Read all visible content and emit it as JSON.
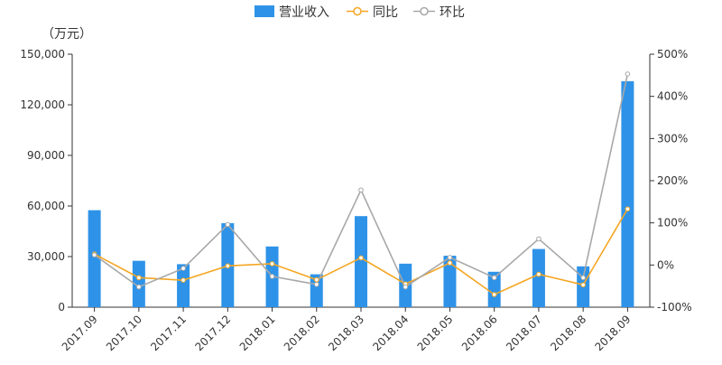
{
  "chart_data": {
    "type": "bar",
    "unit_label": "（万元）",
    "categories": [
      "2017.09",
      "2017.10",
      "2017.11",
      "2017.12",
      "2018.01",
      "2018.02",
      "2018.03",
      "2018.04",
      "2018.05",
      "2018.06",
      "2018.07",
      "2018.08",
      "2018.09"
    ],
    "series": [
      {
        "name": "营业收入",
        "type": "bar",
        "axis": "left",
        "color": "#2E93E8",
        "values": [
          57500,
          27500,
          25500,
          49800,
          36000,
          19500,
          54000,
          25800,
          30500,
          21000,
          34500,
          24200,
          134000
        ]
      },
      {
        "name": "同比",
        "type": "line",
        "axis": "right",
        "color": "#F5A623",
        "values": [
          26,
          -30,
          -36,
          -2,
          3,
          -35,
          17,
          -45,
          5,
          -70,
          -22,
          -47,
          133
        ]
      },
      {
        "name": "环比",
        "type": "line",
        "axis": "right",
        "color": "#A8A8A8",
        "values": [
          24,
          -52,
          -8,
          96,
          -27,
          -46,
          178,
          -52,
          18,
          -30,
          62,
          -30,
          453
        ]
      }
    ],
    "y_left": {
      "min": 0,
      "max": 150000,
      "ticks": [
        0,
        30000,
        60000,
        90000,
        120000,
        150000
      ],
      "tick_labels": [
        "0",
        "30,000",
        "60,000",
        "90,000",
        "120,000",
        "150,000"
      ]
    },
    "y_right": {
      "min": -100,
      "max": 500,
      "ticks": [
        -100,
        0,
        100,
        200,
        300,
        400,
        500
      ],
      "tick_labels": [
        "-100%",
        "0%",
        "100%",
        "200%",
        "300%",
        "400%",
        "500%"
      ]
    },
    "grid": false,
    "legend_position": "top-center"
  }
}
